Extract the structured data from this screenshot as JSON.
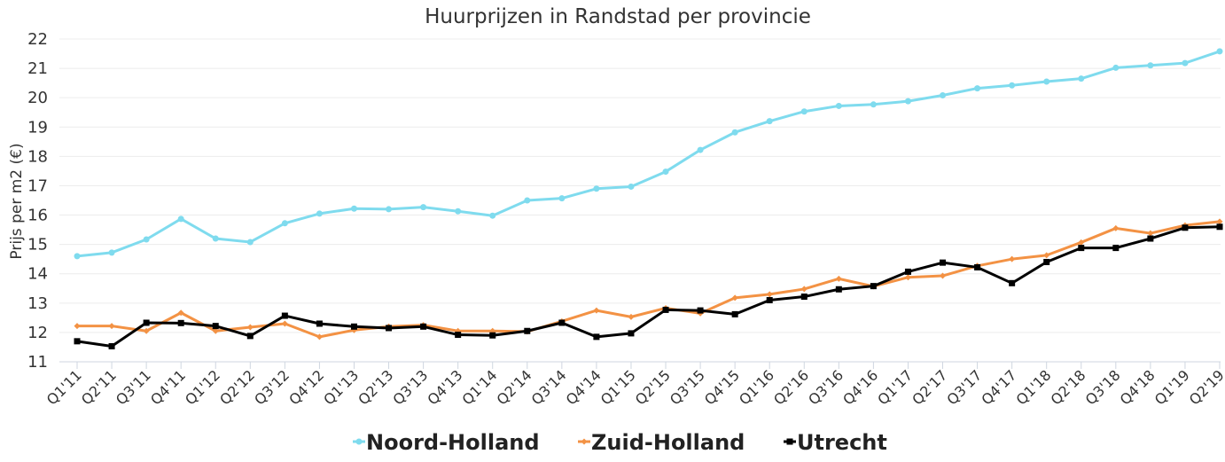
{
  "chart_data": {
    "type": "line",
    "title": "Huurprijzen in Randstad per provincie",
    "xlabel": "",
    "ylabel": "Prijs per m2 (€)",
    "ylim": [
      11,
      22
    ],
    "yticks": [
      11,
      12,
      13,
      14,
      15,
      16,
      17,
      18,
      19,
      20,
      21,
      22
    ],
    "grid": true,
    "legend": "bottom-center",
    "x": [
      "Q1'11",
      "Q2'11",
      "Q3'11",
      "Q4'11",
      "Q1'12",
      "Q2'12",
      "Q3'12",
      "Q4'12",
      "Q1'13",
      "Q2'13",
      "Q3'13",
      "Q4'13",
      "Q1'14",
      "Q2'14",
      "Q3'14",
      "Q4'14",
      "Q1'15",
      "Q2'15",
      "Q3'15",
      "Q4'15",
      "Q1'16",
      "Q2'16",
      "Q3'16",
      "Q4'16",
      "Q1'17",
      "Q2'17",
      "Q3'17",
      "Q4'17",
      "Q1'18",
      "Q2'18",
      "Q3'18",
      "Q4'18",
      "Q1'19",
      "Q2'19"
    ],
    "series": [
      {
        "name": "Noord-Holland",
        "color": "#7fdbee",
        "marker": "circle",
        "values": [
          14.6,
          14.72,
          15.17,
          15.87,
          15.2,
          15.08,
          15.72,
          16.05,
          16.22,
          16.2,
          16.27,
          16.13,
          15.98,
          16.5,
          16.57,
          16.9,
          16.97,
          17.48,
          18.22,
          18.82,
          19.2,
          19.53,
          19.72,
          19.77,
          19.88,
          20.08,
          20.32,
          20.42,
          20.55,
          20.65,
          21.02,
          21.1,
          21.18,
          21.58
        ]
      },
      {
        "name": "Zuid-Holland",
        "color": "#f39244",
        "marker": "diamond",
        "values": [
          12.22,
          12.22,
          12.05,
          12.67,
          12.05,
          12.18,
          12.3,
          11.85,
          12.08,
          12.2,
          12.25,
          12.05,
          12.05,
          12.03,
          12.38,
          12.75,
          12.53,
          12.83,
          12.65,
          13.18,
          13.3,
          13.48,
          13.83,
          13.57,
          13.88,
          13.93,
          14.27,
          14.5,
          14.63,
          15.07,
          15.55,
          15.38,
          15.65,
          15.78
        ]
      },
      {
        "name": "Utrecht",
        "color": "#000000",
        "marker": "square",
        "values": [
          11.7,
          11.53,
          12.33,
          12.32,
          12.22,
          11.88,
          12.57,
          12.3,
          12.2,
          12.15,
          12.2,
          11.92,
          11.9,
          12.05,
          12.33,
          11.85,
          11.97,
          12.77,
          12.75,
          12.62,
          13.1,
          13.22,
          13.47,
          13.58,
          14.07,
          14.38,
          14.22,
          13.68,
          14.4,
          14.88,
          14.88,
          15.2,
          15.57,
          15.6
        ]
      }
    ]
  }
}
